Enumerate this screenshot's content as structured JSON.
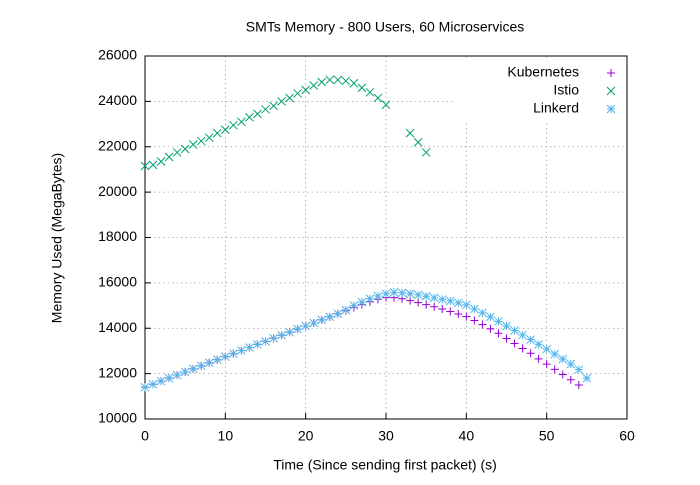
{
  "chart_data": {
    "type": "scatter",
    "title": "SMTs Memory - 800 Users, 60 Microservices",
    "x_label": "Time (Since sending first packet) (s)",
    "y_label": "Memory Used (MegaBytes)",
    "xlim": [
      0,
      60
    ],
    "xticks": [
      0,
      10,
      20,
      30,
      40,
      50,
      60
    ],
    "ylim": [
      10000,
      26000
    ],
    "yticks": [
      10000,
      12000,
      14000,
      16000,
      18000,
      20000,
      22000,
      24000,
      26000
    ],
    "grid": true,
    "legend": "top-right",
    "series": [
      {
        "name": "Kubernetes",
        "color": "#9400d3",
        "marker": "plus",
        "x": [
          0,
          1,
          2,
          3,
          4,
          5,
          6,
          7,
          8,
          9,
          10,
          11,
          12,
          13,
          14,
          15,
          16,
          17,
          18,
          19,
          20,
          21,
          22,
          23,
          24,
          25,
          26,
          27,
          28,
          29,
          30,
          31,
          32,
          33,
          34,
          35,
          36,
          37,
          38,
          39,
          40,
          41,
          42,
          43,
          44,
          45,
          46,
          47,
          48,
          49,
          50,
          51,
          52,
          53,
          54
        ],
        "values": [
          11400,
          11530,
          11670,
          11800,
          11940,
          12070,
          12210,
          12340,
          12480,
          12610,
          12750,
          12880,
          13020,
          13150,
          13290,
          13420,
          13560,
          13690,
          13830,
          13960,
          14100,
          14230,
          14370,
          14500,
          14640,
          14770,
          14910,
          15040,
          15170,
          15280,
          15350,
          15350,
          15300,
          15220,
          15130,
          15040,
          14950,
          14850,
          14740,
          14630,
          14510,
          14340,
          14160,
          13970,
          13780,
          13550,
          13330,
          13110,
          12900,
          12650,
          12420,
          12190,
          11960,
          11730,
          11500
        ]
      },
      {
        "name": "Istio",
        "color": "#009e73",
        "marker": "cross",
        "x": [
          0,
          1,
          2,
          3,
          4,
          5,
          6,
          7,
          8,
          9,
          10,
          11,
          12,
          13,
          14,
          15,
          16,
          17,
          18,
          19,
          20,
          21,
          22,
          23,
          24,
          25,
          26,
          27,
          28,
          29,
          30,
          33,
          34,
          35
        ],
        "values": [
          21150,
          21200,
          21350,
          21550,
          21750,
          21900,
          22100,
          22250,
          22400,
          22600,
          22750,
          22950,
          23100,
          23300,
          23450,
          23650,
          23800,
          24000,
          24150,
          24350,
          24500,
          24700,
          24850,
          24950,
          24950,
          24900,
          24800,
          24600,
          24400,
          24150,
          23850,
          22600,
          22200,
          21750
        ]
      },
      {
        "name": "Linkerd",
        "color": "#56b4e9",
        "marker": "star",
        "x": [
          0,
          1,
          2,
          3,
          4,
          5,
          6,
          7,
          8,
          9,
          10,
          11,
          12,
          13,
          14,
          15,
          16,
          17,
          18,
          19,
          20,
          21,
          22,
          23,
          24,
          25,
          26,
          27,
          28,
          29,
          30,
          31,
          32,
          33,
          34,
          35,
          36,
          37,
          38,
          39,
          40,
          41,
          42,
          43,
          44,
          45,
          46,
          47,
          48,
          49,
          50,
          51,
          52,
          53,
          54,
          55
        ],
        "values": [
          11400,
          11530,
          11670,
          11800,
          11940,
          12070,
          12210,
          12340,
          12480,
          12610,
          12750,
          12880,
          13020,
          13150,
          13290,
          13420,
          13560,
          13690,
          13830,
          13960,
          14100,
          14230,
          14370,
          14500,
          14640,
          14800,
          15000,
          15150,
          15300,
          15420,
          15520,
          15580,
          15560,
          15520,
          15470,
          15410,
          15340,
          15270,
          15200,
          15120,
          15030,
          14850,
          14680,
          14500,
          14300,
          14100,
          13900,
          13700,
          13500,
          13290,
          13080,
          12860,
          12640,
          12420,
          12180,
          11800
        ]
      }
    ]
  }
}
